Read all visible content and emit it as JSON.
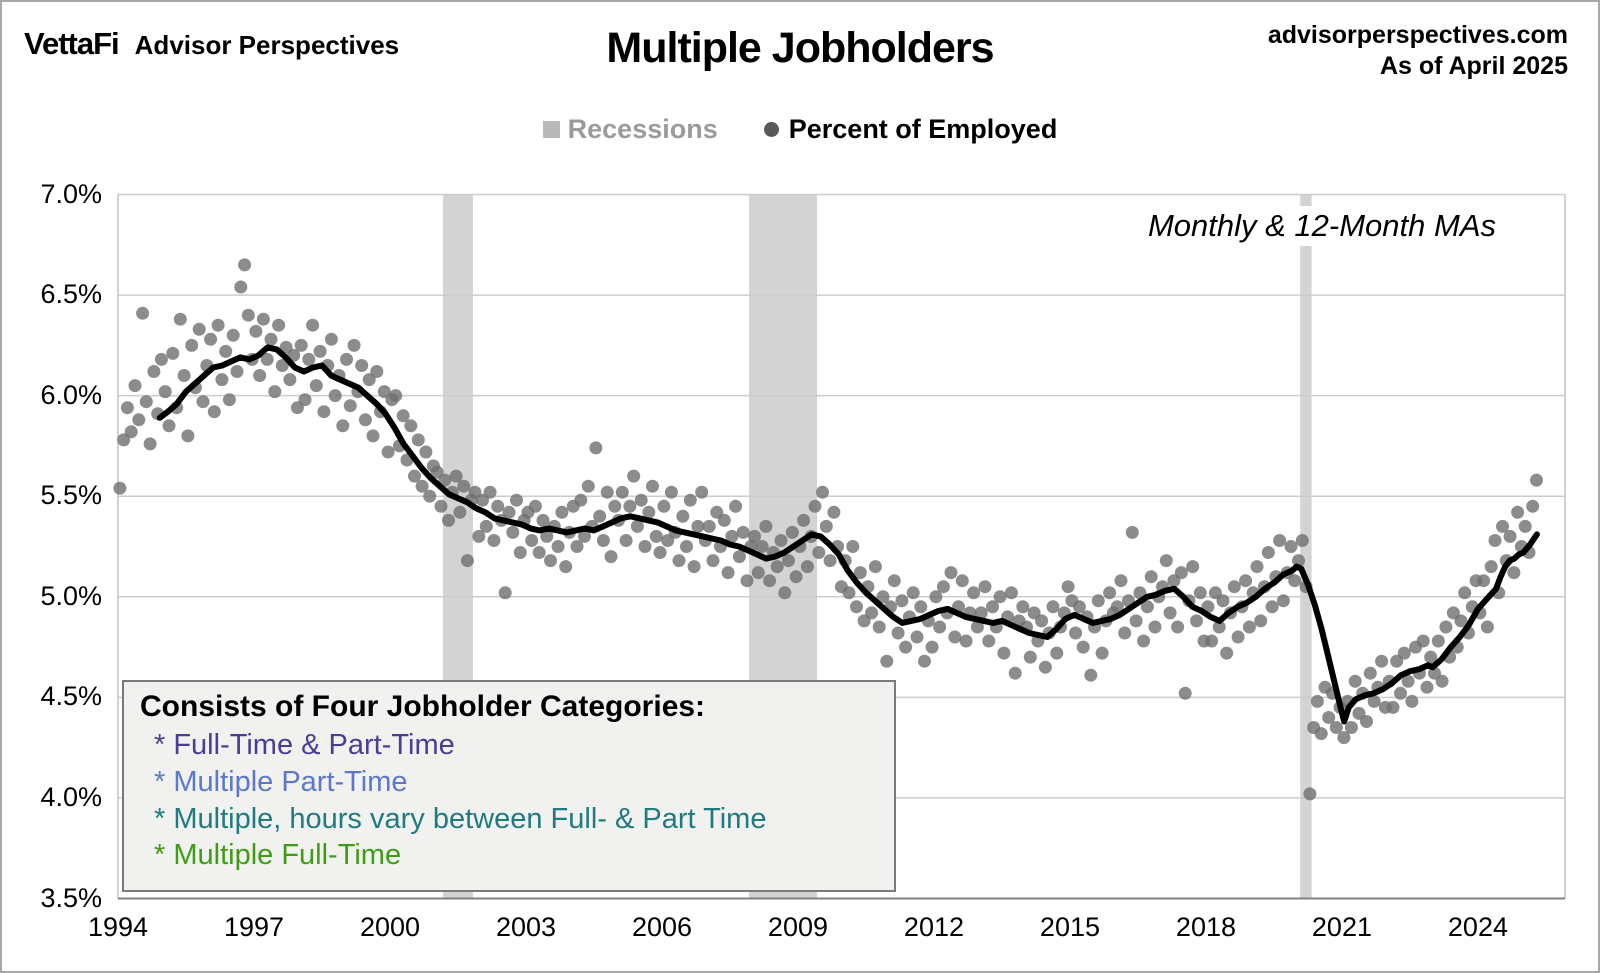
{
  "header": {
    "logo_primary": "VettaFi",
    "logo_secondary": "Advisor Perspectives",
    "title": "Multiple Jobholders",
    "source": "advisorperspectives.com",
    "as_of": "As of April 2025"
  },
  "legend": {
    "recessions_label": "Recessions",
    "series_label": "Percent of Employed"
  },
  "annotation": "Monthly & 12-Month MAs",
  "note_box": {
    "title": "Consists of Four Jobholder Categories:",
    "items": [
      {
        "label": "* Full-Time & Part-Time",
        "color": "#4a3d94"
      },
      {
        "label": "* Multiple Part-Time",
        "color": "#5b78cc"
      },
      {
        "label": "* Multiple, hours vary between Full- & Part Time",
        "color": "#1f7b80"
      },
      {
        "label": "* Multiple Full-Time",
        "color": "#3f9d15"
      }
    ]
  },
  "colors": {
    "recession_band": "#d3d3d3",
    "recession_swatch": "#b9b9b9",
    "recession_text": "#9b9b9b",
    "scatter_dot": "#6f6f6f",
    "ma_line": "#000000",
    "gridline": "#cccccc",
    "plot_border": "#c2c2c2",
    "axis_line": "#808080"
  },
  "chart_data": {
    "type": "scatter",
    "title": "Multiple Jobholders",
    "ylabel": "Percent of Employed",
    "xlabel": "",
    "grid": "horizontal",
    "legend_position": "top-center",
    "ylim": [
      3.5,
      7.0
    ],
    "xlim": [
      1994.0,
      2025.92
    ],
    "y_tick_labels": [
      "7.0%",
      "6.5%",
      "6.0%",
      "5.5%",
      "5.0%",
      "4.5%",
      "4.0%",
      "3.5%"
    ],
    "y_tick_values": [
      7.0,
      6.5,
      6.0,
      5.5,
      5.0,
      4.5,
      4.0,
      3.5
    ],
    "x_tick_values": [
      1994,
      1997,
      2000,
      2003,
      2006,
      2009,
      2012,
      2015,
      2018,
      2021,
      2024
    ],
    "recessions": [
      [
        2001.17,
        2001.83
      ],
      [
        2007.92,
        2009.42
      ],
      [
        2020.08,
        2020.33
      ]
    ],
    "monthly_percent_of_employed": {
      "start_year": 1994,
      "end_label": "April 2025",
      "values": [
        5.54,
        5.78,
        5.94,
        5.82,
        6.05,
        5.88,
        6.41,
        5.97,
        5.76,
        6.12,
        5.91,
        6.18,
        6.02,
        5.85,
        6.21,
        5.94,
        6.38,
        6.1,
        5.8,
        6.25,
        6.04,
        6.33,
        5.97,
        6.15,
        6.28,
        5.92,
        6.35,
        6.08,
        6.22,
        5.98,
        6.3,
        6.12,
        6.54,
        6.65,
        6.4,
        6.18,
        6.32,
        6.1,
        6.38,
        6.18,
        6.28,
        6.02,
        6.35,
        6.15,
        6.24,
        6.08,
        6.2,
        5.94,
        6.25,
        5.98,
        6.18,
        6.35,
        6.05,
        6.22,
        5.92,
        6.15,
        6.28,
        6.0,
        6.1,
        5.85,
        6.18,
        5.95,
        6.25,
        6.02,
        6.15,
        5.88,
        6.08,
        5.8,
        6.12,
        5.92,
        6.02,
        5.72,
        5.98,
        6.0,
        5.75,
        5.9,
        5.68,
        5.85,
        5.6,
        5.78,
        5.55,
        5.72,
        5.5,
        5.65,
        5.62,
        5.45,
        5.58,
        5.38,
        5.52,
        5.6,
        5.42,
        5.55,
        5.18,
        5.48,
        5.52,
        5.3,
        5.48,
        5.35,
        5.52,
        5.28,
        5.45,
        5.38,
        5.02,
        5.42,
        5.32,
        5.48,
        5.22,
        5.38,
        5.42,
        5.28,
        5.45,
        5.22,
        5.38,
        5.3,
        5.18,
        5.35,
        5.25,
        5.42,
        5.15,
        5.32,
        5.45,
        5.25,
        5.48,
        5.3,
        5.55,
        5.35,
        5.74,
        5.4,
        5.28,
        5.52,
        5.2,
        5.45,
        5.38,
        5.52,
        5.28,
        5.45,
        5.6,
        5.35,
        5.48,
        5.25,
        5.42,
        5.55,
        5.3,
        5.22,
        5.45,
        5.28,
        5.52,
        5.32,
        5.18,
        5.4,
        5.25,
        5.48,
        5.15,
        5.35,
        5.52,
        5.28,
        5.35,
        5.18,
        5.42,
        5.25,
        5.38,
        5.12,
        5.3,
        5.45,
        5.2,
        5.32,
        5.08,
        5.25,
        5.3,
        5.12,
        5.25,
        5.35,
        5.08,
        5.22,
        5.15,
        5.28,
        5.02,
        5.18,
        5.32,
        5.1,
        5.25,
        5.38,
        5.15,
        5.3,
        5.45,
        5.22,
        5.52,
        5.35,
        5.18,
        5.42,
        5.25,
        5.05,
        5.18,
        5.02,
        5.25,
        4.95,
        5.12,
        4.88,
        5.05,
        4.92,
        5.15,
        4.85,
        5.0,
        4.68,
        4.95,
        5.08,
        4.82,
        4.98,
        4.75,
        4.9,
        5.02,
        4.8,
        4.95,
        4.68,
        4.88,
        4.75,
        5.0,
        4.85,
        5.05,
        4.92,
        5.12,
        4.8,
        4.95,
        5.08,
        4.78,
        4.92,
        5.02,
        4.85,
        4.92,
        5.05,
        4.78,
        4.95,
        4.85,
        5.0,
        4.72,
        4.9,
        5.02,
        4.62,
        4.88,
        4.95,
        4.85,
        4.7,
        4.92,
        4.78,
        4.88,
        4.65,
        4.82,
        4.95,
        4.72,
        4.85,
        4.92,
        5.05,
        4.98,
        4.82,
        4.95,
        4.75,
        4.9,
        4.61,
        4.85,
        4.98,
        4.72,
        4.88,
        5.02,
        4.92,
        4.95,
        5.08,
        4.82,
        4.98,
        5.32,
        4.88,
        5.02,
        4.78,
        4.95,
        5.1,
        4.85,
        5.0,
        5.05,
        5.18,
        4.92,
        5.08,
        4.85,
        5.12,
        4.52,
        4.98,
        5.15,
        4.88,
        5.02,
        4.78,
        4.95,
        4.78,
        5.02,
        4.85,
        4.98,
        4.72,
        4.92,
        5.05,
        4.8,
        4.95,
        5.08,
        4.85,
        5.02,
        5.15,
        4.88,
        5.05,
        5.22,
        4.95,
        5.1,
        5.28,
        4.98,
        5.12,
        5.25,
        5.08,
        5.18,
        5.28,
        5.05,
        4.02,
        4.35,
        4.48,
        4.32,
        4.55,
        4.4,
        4.52,
        4.35,
        4.45,
        4.3,
        4.48,
        4.35,
        4.58,
        4.42,
        4.52,
        4.38,
        4.62,
        4.48,
        4.55,
        4.68,
        4.45,
        4.58,
        4.45,
        4.68,
        4.52,
        4.72,
        4.58,
        4.48,
        4.75,
        4.62,
        4.78,
        4.55,
        4.7,
        4.62,
        4.78,
        4.58,
        4.85,
        4.7,
        4.92,
        4.75,
        4.88,
        5.02,
        4.82,
        4.95,
        5.08,
        4.92,
        5.08,
        4.85,
        5.15,
        5.28,
        5.02,
        5.35,
        5.18,
        5.3,
        5.12,
        5.42,
        5.25,
        5.35,
        5.22,
        5.45,
        5.58
      ]
    },
    "ma_12_month": {
      "points": [
        [
          1994.92,
          5.89
        ],
        [
          1995.1,
          5.92
        ],
        [
          1995.3,
          5.96
        ],
        [
          1995.5,
          6.02
        ],
        [
          1995.7,
          6.06
        ],
        [
          1995.9,
          6.1
        ],
        [
          1996.1,
          6.14
        ],
        [
          1996.3,
          6.15
        ],
        [
          1996.5,
          6.17
        ],
        [
          1996.7,
          6.19
        ],
        [
          1996.9,
          6.18
        ],
        [
          1997.1,
          6.2
        ],
        [
          1997.3,
          6.24
        ],
        [
          1997.5,
          6.23
        ],
        [
          1997.7,
          6.19
        ],
        [
          1997.9,
          6.14
        ],
        [
          1998.1,
          6.12
        ],
        [
          1998.3,
          6.14
        ],
        [
          1998.5,
          6.15
        ],
        [
          1998.7,
          6.1
        ],
        [
          1998.9,
          6.08
        ],
        [
          1999.1,
          6.06
        ],
        [
          1999.3,
          6.04
        ],
        [
          1999.5,
          6.0
        ],
        [
          1999.7,
          5.96
        ],
        [
          1999.9,
          5.91
        ],
        [
          2000.1,
          5.84
        ],
        [
          2000.3,
          5.76
        ],
        [
          2000.5,
          5.7
        ],
        [
          2000.7,
          5.64
        ],
        [
          2000.9,
          5.59
        ],
        [
          2001.1,
          5.55
        ],
        [
          2001.3,
          5.51
        ],
        [
          2001.5,
          5.49
        ],
        [
          2001.7,
          5.47
        ],
        [
          2001.9,
          5.44
        ],
        [
          2002.1,
          5.42
        ],
        [
          2002.3,
          5.39
        ],
        [
          2002.5,
          5.38
        ],
        [
          2002.7,
          5.37
        ],
        [
          2002.9,
          5.36
        ],
        [
          2003.1,
          5.34
        ],
        [
          2003.3,
          5.33
        ],
        [
          2003.5,
          5.34
        ],
        [
          2003.7,
          5.33
        ],
        [
          2003.9,
          5.32
        ],
        [
          2004.1,
          5.33
        ],
        [
          2004.3,
          5.34
        ],
        [
          2004.5,
          5.33
        ],
        [
          2004.7,
          5.35
        ],
        [
          2004.9,
          5.37
        ],
        [
          2005.1,
          5.39
        ],
        [
          2005.3,
          5.4
        ],
        [
          2005.5,
          5.39
        ],
        [
          2005.7,
          5.38
        ],
        [
          2005.9,
          5.37
        ],
        [
          2006.1,
          5.35
        ],
        [
          2006.3,
          5.33
        ],
        [
          2006.5,
          5.32
        ],
        [
          2006.7,
          5.31
        ],
        [
          2006.9,
          5.3
        ],
        [
          2007.1,
          5.29
        ],
        [
          2007.3,
          5.28
        ],
        [
          2007.5,
          5.26
        ],
        [
          2007.7,
          5.25
        ],
        [
          2007.9,
          5.23
        ],
        [
          2008.1,
          5.21
        ],
        [
          2008.3,
          5.19
        ],
        [
          2008.5,
          5.2
        ],
        [
          2008.7,
          5.22
        ],
        [
          2008.9,
          5.25
        ],
        [
          2009.1,
          5.28
        ],
        [
          2009.3,
          5.31
        ],
        [
          2009.5,
          5.3
        ],
        [
          2009.7,
          5.26
        ],
        [
          2009.9,
          5.21
        ],
        [
          2010.1,
          5.13
        ],
        [
          2010.3,
          5.07
        ],
        [
          2010.5,
          5.02
        ],
        [
          2010.7,
          4.98
        ],
        [
          2010.9,
          4.94
        ],
        [
          2011.1,
          4.9
        ],
        [
          2011.3,
          4.87
        ],
        [
          2011.5,
          4.88
        ],
        [
          2011.7,
          4.89
        ],
        [
          2011.9,
          4.91
        ],
        [
          2012.1,
          4.93
        ],
        [
          2012.3,
          4.94
        ],
        [
          2012.5,
          4.92
        ],
        [
          2012.7,
          4.9
        ],
        [
          2012.9,
          4.89
        ],
        [
          2013.1,
          4.88
        ],
        [
          2013.3,
          4.87
        ],
        [
          2013.5,
          4.88
        ],
        [
          2013.7,
          4.86
        ],
        [
          2013.9,
          4.84
        ],
        [
          2014.1,
          4.82
        ],
        [
          2014.3,
          4.81
        ],
        [
          2014.5,
          4.8
        ],
        [
          2014.7,
          4.84
        ],
        [
          2014.9,
          4.89
        ],
        [
          2015.1,
          4.91
        ],
        [
          2015.3,
          4.89
        ],
        [
          2015.5,
          4.87
        ],
        [
          2015.7,
          4.88
        ],
        [
          2015.9,
          4.89
        ],
        [
          2016.1,
          4.91
        ],
        [
          2016.3,
          4.94
        ],
        [
          2016.5,
          4.97
        ],
        [
          2016.7,
          5.0
        ],
        [
          2016.9,
          5.01
        ],
        [
          2017.1,
          5.03
        ],
        [
          2017.3,
          5.04
        ],
        [
          2017.5,
          5.0
        ],
        [
          2017.7,
          4.95
        ],
        [
          2017.9,
          4.93
        ],
        [
          2018.1,
          4.9
        ],
        [
          2018.3,
          4.88
        ],
        [
          2018.5,
          4.92
        ],
        [
          2018.7,
          4.95
        ],
        [
          2018.9,
          4.97
        ],
        [
          2019.1,
          5.0
        ],
        [
          2019.3,
          5.04
        ],
        [
          2019.5,
          5.07
        ],
        [
          2019.7,
          5.11
        ],
        [
          2019.9,
          5.13
        ],
        [
          2020.0,
          5.15
        ],
        [
          2020.1,
          5.14
        ],
        [
          2020.25,
          5.06
        ],
        [
          2020.4,
          4.96
        ],
        [
          2020.55,
          4.84
        ],
        [
          2020.7,
          4.7
        ],
        [
          2020.85,
          4.56
        ],
        [
          2021.0,
          4.42
        ],
        [
          2021.05,
          4.38
        ],
        [
          2021.15,
          4.45
        ],
        [
          2021.3,
          4.49
        ],
        [
          2021.5,
          4.51
        ],
        [
          2021.7,
          4.52
        ],
        [
          2021.9,
          4.54
        ],
        [
          2022.1,
          4.57
        ],
        [
          2022.3,
          4.61
        ],
        [
          2022.5,
          4.63
        ],
        [
          2022.7,
          4.64
        ],
        [
          2022.9,
          4.66
        ],
        [
          2023.0,
          4.65
        ],
        [
          2023.2,
          4.69
        ],
        [
          2023.4,
          4.75
        ],
        [
          2023.6,
          4.8
        ],
        [
          2023.8,
          4.86
        ],
        [
          2024.0,
          4.94
        ],
        [
          2024.2,
          4.99
        ],
        [
          2024.4,
          5.04
        ],
        [
          2024.5,
          5.1
        ],
        [
          2024.6,
          5.15
        ],
        [
          2024.7,
          5.18
        ],
        [
          2024.8,
          5.19
        ],
        [
          2024.9,
          5.21
        ],
        [
          2025.0,
          5.22
        ],
        [
          2025.15,
          5.26
        ],
        [
          2025.3,
          5.31
        ]
      ]
    }
  }
}
